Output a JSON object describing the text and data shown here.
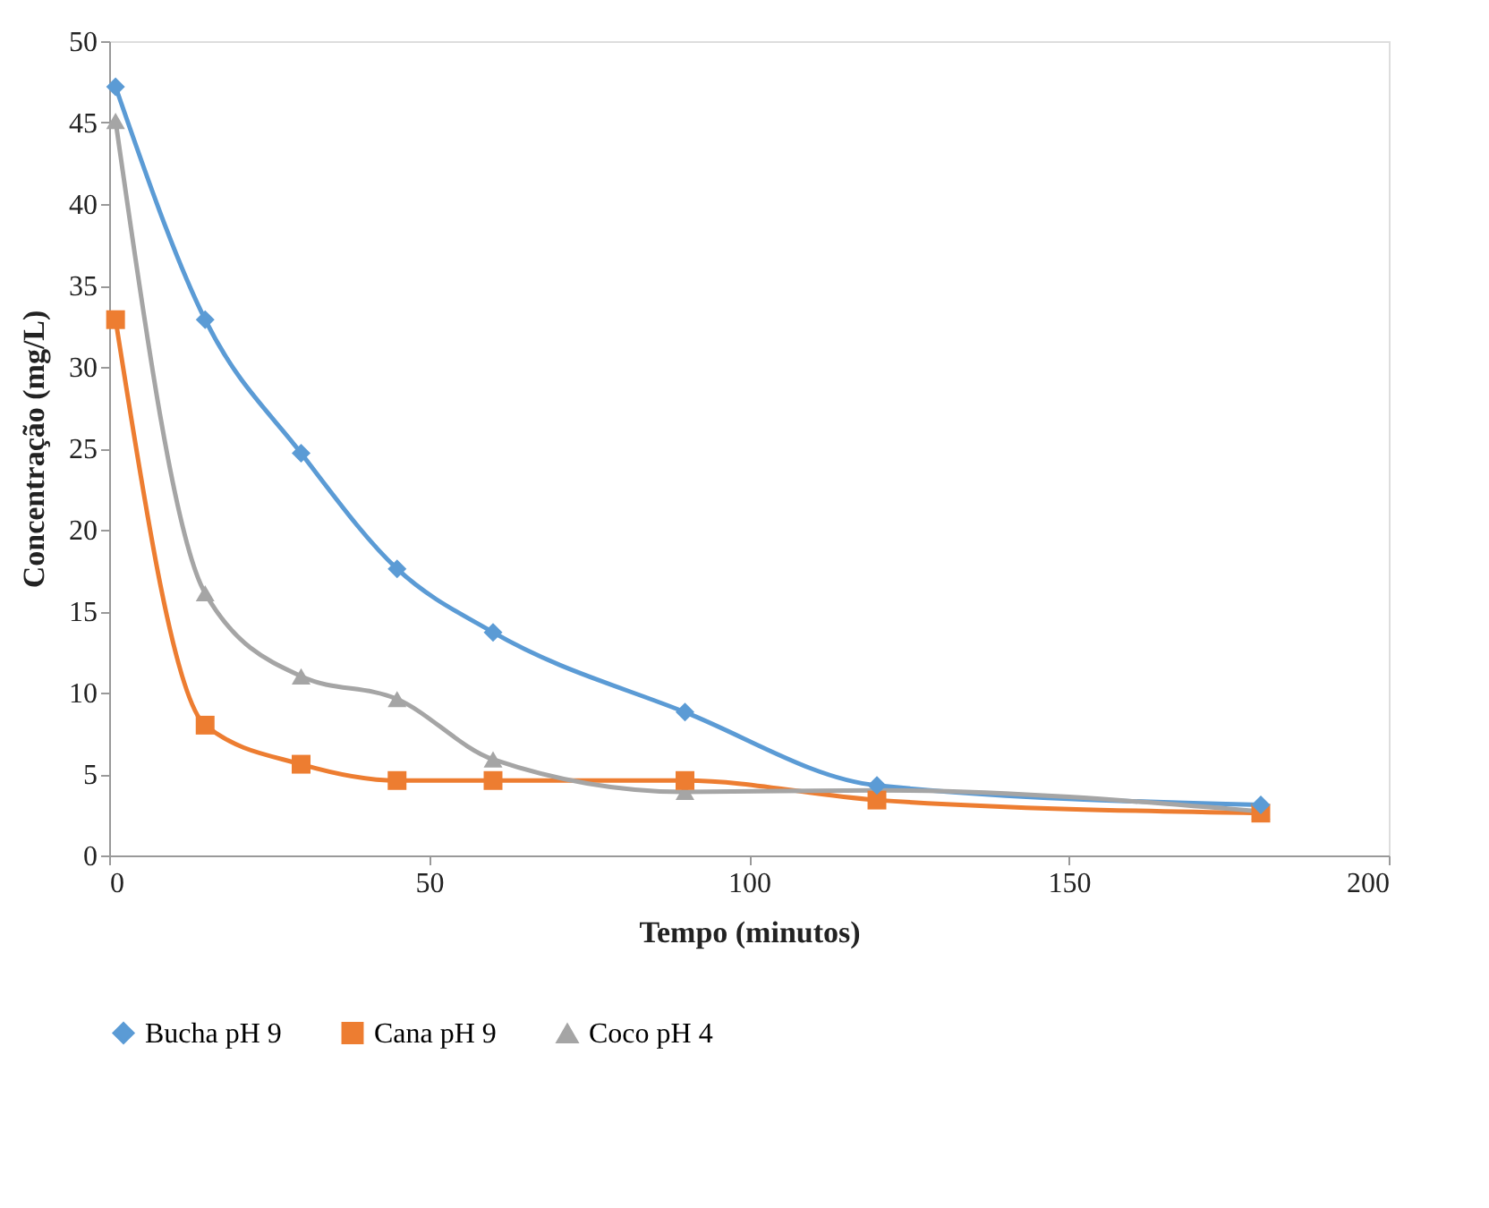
{
  "chart_data": {
    "type": "line",
    "xlabel": "Tempo (minutos)",
    "ylabel": "Concentração (mg/L)",
    "x": [
      1,
      15,
      30,
      45,
      60,
      90,
      120,
      180
    ],
    "xlim": [
      0,
      200
    ],
    "xticks": [
      0,
      50,
      100,
      150,
      200
    ],
    "ylim": [
      0,
      50
    ],
    "yticks": [
      0,
      5,
      10,
      15,
      20,
      25,
      30,
      35,
      40,
      45,
      50
    ],
    "grid": false,
    "legend": "bottom",
    "line_style": "solid",
    "series": [
      {
        "name": "Bucha pH 9",
        "color": "#5b9bd5",
        "marker": "diamond",
        "values": [
          47.2,
          32.9,
          24.7,
          17.6,
          13.7,
          8.8,
          4.3,
          3.1
        ]
      },
      {
        "name": "Cana pH 9",
        "color": "#ed7d31",
        "marker": "square",
        "values": [
          32.9,
          8.0,
          5.6,
          4.6,
          4.6,
          4.6,
          3.4,
          2.6
        ]
      },
      {
        "name": "Coco pH 4",
        "color": "#a5a5a5",
        "marker": "triangle",
        "values": [
          45.1,
          16.1,
          11.0,
          9.6,
          5.9,
          3.9,
          4.0,
          2.7
        ]
      }
    ]
  }
}
